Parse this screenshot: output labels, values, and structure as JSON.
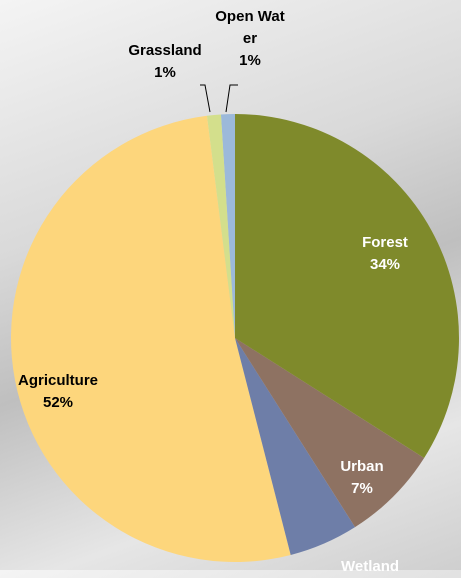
{
  "chart_data": {
    "type": "pie",
    "categories": [
      "Forest",
      "Urban",
      "Wetland",
      "Agriculture",
      "Grassland",
      "Open Water"
    ],
    "values": [
      34,
      7,
      5,
      52,
      1,
      1
    ],
    "value_labels": [
      "34%",
      "7%",
      null,
      "52%",
      "1%",
      "1%"
    ],
    "colors": [
      "#7f8a2b",
      "#8e7262",
      "#6e7ea8",
      "#fdd67c",
      "#d3df8c",
      "#9cb9da"
    ]
  }
}
